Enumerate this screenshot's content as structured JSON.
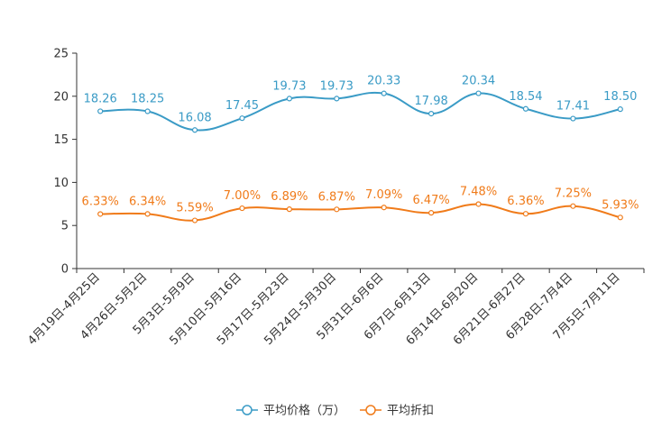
{
  "chart_data": {
    "type": "line",
    "categories": [
      "4月19日-4月25日",
      "4月26日-5月2日",
      "5月3日-5月9日",
      "5月10日-5月16日",
      "5月17日-5月23日",
      "5月24日-5月30日",
      "5月31日-6月6日",
      "6月7日-6月13日",
      "6月14日-6月20日",
      "6月21日-6月27日",
      "6月28日-7月4日",
      "7月5日-7月11日"
    ],
    "series": [
      {
        "name": "平均价格（万）",
        "color": "#3a9bc6",
        "values": [
          18.26,
          18.25,
          16.08,
          17.45,
          19.73,
          19.73,
          20.33,
          17.98,
          20.34,
          18.54,
          17.41,
          18.5
        ],
        "labels": [
          "18.26",
          "18.25",
          "16.08",
          "17.45",
          "19.73",
          "19.73",
          "20.33",
          "17.98",
          "20.34",
          "18.54",
          "17.41",
          "18.50"
        ]
      },
      {
        "name": "平均折扣",
        "color": "#f07b1a",
        "values": [
          6.33,
          6.34,
          5.59,
          7.0,
          6.89,
          6.87,
          7.09,
          6.47,
          7.48,
          6.36,
          7.25,
          5.93
        ],
        "labels": [
          "6.33%",
          "6.34%",
          "5.59%",
          "7.00%",
          "6.89%",
          "6.87%",
          "7.09%",
          "6.47%",
          "7.48%",
          "6.36%",
          "7.25%",
          "5.93%"
        ]
      }
    ],
    "yticks": [
      "0",
      "5",
      "10",
      "15",
      "20",
      "25"
    ],
    "ylim": [
      0,
      25
    ],
    "title": "",
    "xlabel": "",
    "ylabel": "",
    "legend": "bottom-center"
  }
}
